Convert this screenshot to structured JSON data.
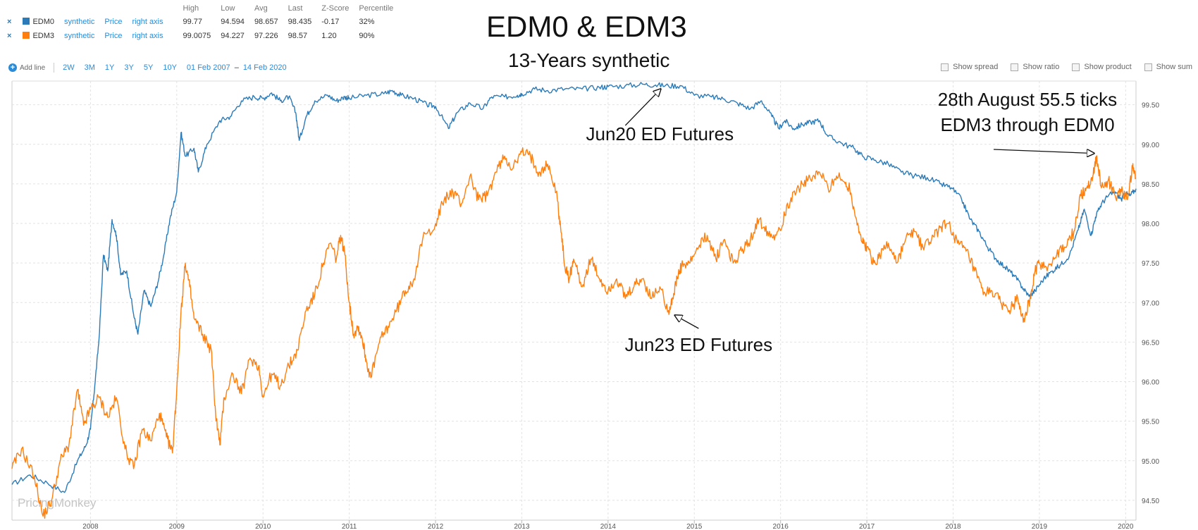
{
  "legend": {
    "headers": [
      "High",
      "Low",
      "Avg",
      "Last",
      "Z-Score",
      "Percentile"
    ],
    "rows": [
      {
        "remove": "×",
        "name": "EDM0",
        "color": "#2b7bb9",
        "source": "synthetic",
        "measure": "Price",
        "axis": "right axis",
        "high": "99.77",
        "low": "94.594",
        "avg": "98.657",
        "last": "98.435",
        "z": "-0.17",
        "pct": "32%"
      },
      {
        "remove": "×",
        "name": "EDM3",
        "color": "#ff7f0e",
        "source": "synthetic",
        "measure": "Price",
        "axis": "right axis",
        "high": "99.0075",
        "low": "94.227",
        "avg": "97.226",
        "last": "98.57",
        "z": "1.20",
        "pct": "90%"
      }
    ]
  },
  "toolbar": {
    "add_line": "Add line",
    "ranges": [
      "2W",
      "3M",
      "1Y",
      "3Y",
      "5Y",
      "10Y"
    ],
    "date_from": "01 Feb 2007",
    "date_sep": "–",
    "date_to": "14 Feb 2020"
  },
  "options": [
    "Show spread",
    "Show ratio",
    "Show product",
    "Show sum"
  ],
  "watermark": "PricingMonkey",
  "chart_data": {
    "type": "line",
    "title": "EDM0 & EDM3",
    "subtitle": "13-Years synthetic",
    "ylim": [
      94.25,
      99.8
    ],
    "y_ticks": [
      "94.50",
      "95.00",
      "95.50",
      "96.00",
      "96.50",
      "97.00",
      "97.50",
      "98.00",
      "98.50",
      "99.00",
      "99.50"
    ],
    "x_ticks": [
      "2008",
      "2009",
      "2010",
      "2011",
      "2012",
      "2013",
      "2014",
      "2015",
      "2016",
      "2017",
      "2018",
      "2019",
      "2020"
    ],
    "xlim": [
      2007.09,
      2020.12
    ],
    "grid": true,
    "series": [
      {
        "name": "EDM0",
        "color": "#2b7bb9",
        "points": [
          [
            2007.09,
            94.7
          ],
          [
            2007.3,
            94.82
          ],
          [
            2007.5,
            94.72
          ],
          [
            2007.7,
            94.6
          ],
          [
            2007.85,
            95.0
          ],
          [
            2007.95,
            95.2
          ],
          [
            2008.0,
            95.4
          ],
          [
            2008.05,
            95.95
          ],
          [
            2008.1,
            96.55
          ],
          [
            2008.15,
            97.6
          ],
          [
            2008.2,
            97.4
          ],
          [
            2008.25,
            98.05
          ],
          [
            2008.3,
            97.85
          ],
          [
            2008.35,
            97.35
          ],
          [
            2008.42,
            97.4
          ],
          [
            2008.5,
            96.85
          ],
          [
            2008.55,
            96.6
          ],
          [
            2008.62,
            97.15
          ],
          [
            2008.7,
            96.95
          ],
          [
            2008.78,
            97.25
          ],
          [
            2008.85,
            97.6
          ],
          [
            2008.92,
            98.05
          ],
          [
            2009.0,
            98.4
          ],
          [
            2009.05,
            99.15
          ],
          [
            2009.1,
            98.85
          ],
          [
            2009.2,
            98.95
          ],
          [
            2009.25,
            98.65
          ],
          [
            2009.35,
            99.0
          ],
          [
            2009.5,
            99.3
          ],
          [
            2009.62,
            99.35
          ],
          [
            2009.75,
            99.55
          ],
          [
            2009.9,
            99.6
          ],
          [
            2010.0,
            99.58
          ],
          [
            2010.1,
            99.65
          ],
          [
            2010.2,
            99.55
          ],
          [
            2010.3,
            99.6
          ],
          [
            2010.38,
            99.4
          ],
          [
            2010.42,
            99.05
          ],
          [
            2010.5,
            99.35
          ],
          [
            2010.6,
            99.55
          ],
          [
            2010.75,
            99.62
          ],
          [
            2010.85,
            99.55
          ],
          [
            2010.95,
            99.6
          ],
          [
            2011.0,
            99.58
          ],
          [
            2011.2,
            99.62
          ],
          [
            2011.4,
            99.64
          ],
          [
            2011.5,
            99.68
          ],
          [
            2011.6,
            99.62
          ],
          [
            2011.75,
            99.58
          ],
          [
            2011.9,
            99.5
          ],
          [
            2012.0,
            99.48
          ],
          [
            2012.15,
            99.2
          ],
          [
            2012.25,
            99.4
          ],
          [
            2012.4,
            99.52
          ],
          [
            2012.55,
            99.45
          ],
          [
            2012.65,
            99.6
          ],
          [
            2012.8,
            99.6
          ],
          [
            2012.95,
            99.62
          ],
          [
            2013.0,
            99.64
          ],
          [
            2013.15,
            99.7
          ],
          [
            2013.3,
            99.68
          ],
          [
            2013.5,
            99.7
          ],
          [
            2013.7,
            99.7
          ],
          [
            2013.9,
            99.72
          ],
          [
            2014.0,
            99.73
          ],
          [
            2014.2,
            99.74
          ],
          [
            2014.4,
            99.76
          ],
          [
            2014.55,
            99.75
          ],
          [
            2014.7,
            99.74
          ],
          [
            2014.85,
            99.74
          ],
          [
            2015.0,
            99.62
          ],
          [
            2015.2,
            99.6
          ],
          [
            2015.35,
            99.57
          ],
          [
            2015.5,
            99.52
          ],
          [
            2015.65,
            99.45
          ],
          [
            2015.78,
            99.55
          ],
          [
            2015.9,
            99.35
          ],
          [
            2015.98,
            99.2
          ],
          [
            2016.05,
            99.3
          ],
          [
            2016.15,
            99.2
          ],
          [
            2016.25,
            99.25
          ],
          [
            2016.35,
            99.28
          ],
          [
            2016.45,
            99.3
          ],
          [
            2016.55,
            99.1
          ],
          [
            2016.7,
            99.02
          ],
          [
            2016.85,
            98.95
          ],
          [
            2016.95,
            98.85
          ],
          [
            2017.1,
            98.8
          ],
          [
            2017.25,
            98.75
          ],
          [
            2017.4,
            98.65
          ],
          [
            2017.55,
            98.6
          ],
          [
            2017.7,
            98.58
          ],
          [
            2017.85,
            98.5
          ],
          [
            2017.98,
            98.45
          ],
          [
            2018.1,
            98.3
          ],
          [
            2018.2,
            98.05
          ],
          [
            2018.3,
            97.9
          ],
          [
            2018.4,
            97.7
          ],
          [
            2018.5,
            97.55
          ],
          [
            2018.6,
            97.45
          ],
          [
            2018.7,
            97.35
          ],
          [
            2018.8,
            97.2
          ],
          [
            2018.88,
            97.08
          ],
          [
            2018.95,
            97.15
          ],
          [
            2019.05,
            97.3
          ],
          [
            2019.15,
            97.4
          ],
          [
            2019.25,
            97.48
          ],
          [
            2019.35,
            97.6
          ],
          [
            2019.45,
            97.92
          ],
          [
            2019.52,
            98.18
          ],
          [
            2019.6,
            97.85
          ],
          [
            2019.65,
            98.08
          ],
          [
            2019.72,
            98.25
          ],
          [
            2019.8,
            98.35
          ],
          [
            2019.88,
            98.4
          ],
          [
            2019.95,
            98.3
          ],
          [
            2020.0,
            98.38
          ],
          [
            2020.05,
            98.35
          ],
          [
            2020.12,
            98.44
          ]
        ]
      },
      {
        "name": "EDM3",
        "color": "#ff7f0e",
        "points": [
          [
            2007.09,
            94.9
          ],
          [
            2007.2,
            95.15
          ],
          [
            2007.35,
            94.8
          ],
          [
            2007.45,
            94.3
          ],
          [
            2007.55,
            94.5
          ],
          [
            2007.65,
            95.0
          ],
          [
            2007.75,
            95.2
          ],
          [
            2007.85,
            95.9
          ],
          [
            2007.92,
            95.45
          ],
          [
            2008.0,
            95.65
          ],
          [
            2008.1,
            95.8
          ],
          [
            2008.2,
            95.55
          ],
          [
            2008.3,
            95.8
          ],
          [
            2008.4,
            95.15
          ],
          [
            2008.5,
            94.9
          ],
          [
            2008.6,
            95.4
          ],
          [
            2008.7,
            95.25
          ],
          [
            2008.8,
            95.6
          ],
          [
            2008.88,
            95.3
          ],
          [
            2008.95,
            95.1
          ],
          [
            2009.0,
            95.9
          ],
          [
            2009.05,
            96.9
          ],
          [
            2009.1,
            97.5
          ],
          [
            2009.15,
            97.2
          ],
          [
            2009.2,
            96.8
          ],
          [
            2009.3,
            96.6
          ],
          [
            2009.4,
            96.4
          ],
          [
            2009.45,
            95.6
          ],
          [
            2009.5,
            95.2
          ],
          [
            2009.55,
            95.8
          ],
          [
            2009.65,
            96.1
          ],
          [
            2009.75,
            95.85
          ],
          [
            2009.85,
            96.3
          ],
          [
            2009.95,
            96.2
          ],
          [
            2010.0,
            95.8
          ],
          [
            2010.1,
            96.1
          ],
          [
            2010.2,
            95.95
          ],
          [
            2010.3,
            96.2
          ],
          [
            2010.4,
            96.4
          ],
          [
            2010.5,
            96.9
          ],
          [
            2010.6,
            97.1
          ],
          [
            2010.7,
            97.5
          ],
          [
            2010.78,
            97.75
          ],
          [
            2010.85,
            97.55
          ],
          [
            2010.9,
            97.85
          ],
          [
            2010.95,
            97.6
          ],
          [
            2011.0,
            97.0
          ],
          [
            2011.05,
            96.6
          ],
          [
            2011.1,
            96.7
          ],
          [
            2011.15,
            96.55
          ],
          [
            2011.2,
            96.25
          ],
          [
            2011.25,
            96.05
          ],
          [
            2011.35,
            96.5
          ],
          [
            2011.45,
            96.7
          ],
          [
            2011.55,
            96.9
          ],
          [
            2011.65,
            97.15
          ],
          [
            2011.75,
            97.3
          ],
          [
            2011.85,
            97.8
          ],
          [
            2012.0,
            98.0
          ],
          [
            2012.1,
            98.3
          ],
          [
            2012.2,
            98.4
          ],
          [
            2012.3,
            98.25
          ],
          [
            2012.4,
            98.6
          ],
          [
            2012.5,
            98.3
          ],
          [
            2012.6,
            98.35
          ],
          [
            2012.7,
            98.65
          ],
          [
            2012.8,
            98.85
          ],
          [
            2012.9,
            98.7
          ],
          [
            2013.0,
            98.9
          ],
          [
            2013.1,
            98.85
          ],
          [
            2013.2,
            98.65
          ],
          [
            2013.3,
            98.75
          ],
          [
            2013.4,
            98.4
          ],
          [
            2013.45,
            97.95
          ],
          [
            2013.5,
            97.45
          ],
          [
            2013.55,
            97.3
          ],
          [
            2013.6,
            97.55
          ],
          [
            2013.7,
            97.2
          ],
          [
            2013.8,
            97.55
          ],
          [
            2013.9,
            97.3
          ],
          [
            2014.0,
            97.15
          ],
          [
            2014.1,
            97.3
          ],
          [
            2014.2,
            97.05
          ],
          [
            2014.3,
            97.2
          ],
          [
            2014.4,
            97.3
          ],
          [
            2014.5,
            97.05
          ],
          [
            2014.6,
            97.2
          ],
          [
            2014.7,
            96.9
          ],
          [
            2014.75,
            97.05
          ],
          [
            2014.8,
            97.3
          ],
          [
            2014.85,
            97.45
          ],
          [
            2014.95,
            97.5
          ],
          [
            2015.05,
            97.7
          ],
          [
            2015.15,
            97.85
          ],
          [
            2015.25,
            97.55
          ],
          [
            2015.35,
            97.8
          ],
          [
            2015.45,
            97.5
          ],
          [
            2015.55,
            97.65
          ],
          [
            2015.65,
            97.8
          ],
          [
            2015.75,
            98.05
          ],
          [
            2015.85,
            97.9
          ],
          [
            2015.95,
            97.85
          ],
          [
            2016.05,
            98.1
          ],
          [
            2016.15,
            98.4
          ],
          [
            2016.25,
            98.5
          ],
          [
            2016.35,
            98.55
          ],
          [
            2016.45,
            98.65
          ],
          [
            2016.55,
            98.45
          ],
          [
            2016.65,
            98.6
          ],
          [
            2016.75,
            98.5
          ],
          [
            2016.8,
            98.45
          ],
          [
            2016.88,
            98.05
          ],
          [
            2016.95,
            97.75
          ],
          [
            2017.0,
            97.7
          ],
          [
            2017.08,
            97.5
          ],
          [
            2017.15,
            97.6
          ],
          [
            2017.25,
            97.75
          ],
          [
            2017.35,
            97.5
          ],
          [
            2017.45,
            97.8
          ],
          [
            2017.55,
            97.9
          ],
          [
            2017.65,
            97.7
          ],
          [
            2017.75,
            97.8
          ],
          [
            2017.85,
            97.95
          ],
          [
            2017.95,
            98.0
          ],
          [
            2018.05,
            97.75
          ],
          [
            2018.15,
            97.65
          ],
          [
            2018.25,
            97.4
          ],
          [
            2018.35,
            97.1
          ],
          [
            2018.45,
            97.15
          ],
          [
            2018.55,
            97.0
          ],
          [
            2018.65,
            96.9
          ],
          [
            2018.75,
            97.05
          ],
          [
            2018.82,
            96.8
          ],
          [
            2018.9,
            97.05
          ],
          [
            2018.95,
            97.4
          ],
          [
            2019.0,
            97.5
          ],
          [
            2019.1,
            97.45
          ],
          [
            2019.2,
            97.6
          ],
          [
            2019.3,
            97.7
          ],
          [
            2019.4,
            97.9
          ],
          [
            2019.48,
            98.35
          ],
          [
            2019.55,
            98.45
          ],
          [
            2019.62,
            98.6
          ],
          [
            2019.66,
            98.85
          ],
          [
            2019.72,
            98.45
          ],
          [
            2019.8,
            98.55
          ],
          [
            2019.88,
            98.35
          ],
          [
            2019.95,
            98.4
          ],
          [
            2020.02,
            98.3
          ],
          [
            2020.08,
            98.7
          ],
          [
            2020.12,
            98.57
          ]
        ]
      }
    ],
    "annotations": [
      {
        "text": "Jun20 ED Futures",
        "x": 2014.6,
        "y": 99.76
      },
      {
        "text": "Jun23 ED Futures",
        "x": 2014.75,
        "y": 96.88
      },
      {
        "text": [
          "28th August 55.5 ticks",
          "EDM3 through EDM0"
        ],
        "x": 2019.66,
        "y": 98.85
      }
    ]
  }
}
